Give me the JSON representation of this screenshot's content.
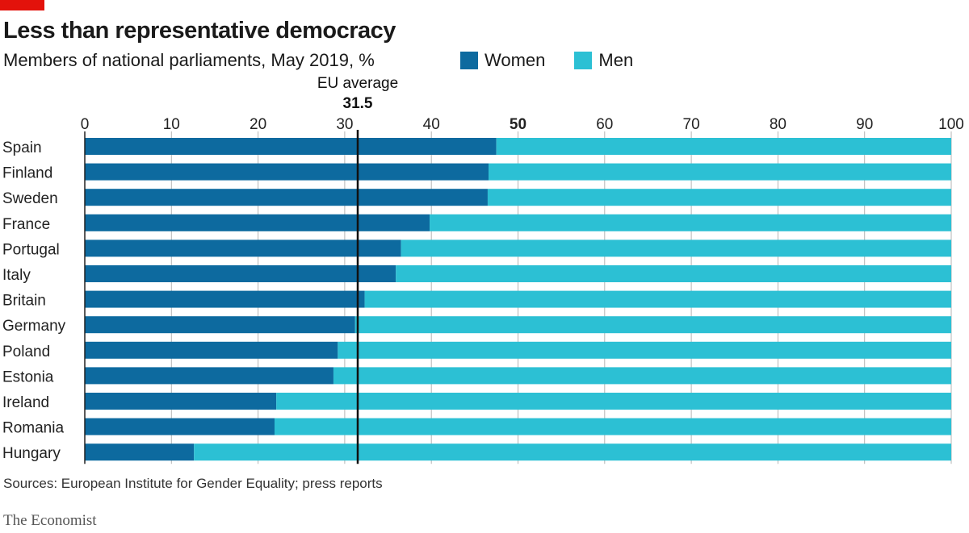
{
  "header": {
    "title": "Less than representative democracy",
    "subtitle": "Members of national parliaments, May 2019, %"
  },
  "footer": {
    "source": "Sources: European Institute for Gender Equality; press reports",
    "logo": "The Economist"
  },
  "colors": {
    "women": "#0d6a9f",
    "men": "#2cc0d4",
    "accent": "#e3120b",
    "average_line": "#111111"
  },
  "chart_data": {
    "type": "bar",
    "stacked": true,
    "orientation": "horizontal",
    "title": "Less than representative democracy",
    "subtitle": "Members of national parliaments, May 2019, %",
    "categories": [
      "Spain",
      "Finland",
      "Sweden",
      "France",
      "Portugal",
      "Italy",
      "Britain",
      "Germany",
      "Poland",
      "Estonia",
      "Ireland",
      "Romania",
      "Hungary"
    ],
    "series": [
      {
        "name": "Women",
        "values": [
          47.5,
          46.6,
          46.5,
          39.8,
          36.5,
          35.9,
          32.3,
          31.2,
          29.2,
          28.7,
          22.1,
          21.9,
          12.6
        ]
      },
      {
        "name": "Men",
        "values": [
          52.5,
          53.4,
          53.5,
          60.2,
          63.5,
          64.1,
          67.7,
          68.8,
          70.8,
          71.3,
          77.9,
          78.1,
          87.4
        ]
      }
    ],
    "xlim": [
      0,
      100
    ],
    "xticks": [
      "0",
      "10",
      "20",
      "30",
      "40",
      "50",
      "60",
      "70",
      "80",
      "90",
      "100"
    ],
    "xtick_values": [
      0,
      10,
      20,
      30,
      40,
      50,
      60,
      70,
      80,
      90,
      100
    ],
    "highlight_tick": "50",
    "reference": {
      "label": "EU average",
      "value": 31.5,
      "value_label": "31.5"
    },
    "legend": {
      "position": "top-right",
      "entries": [
        "Women",
        "Men"
      ]
    },
    "grid": true
  }
}
